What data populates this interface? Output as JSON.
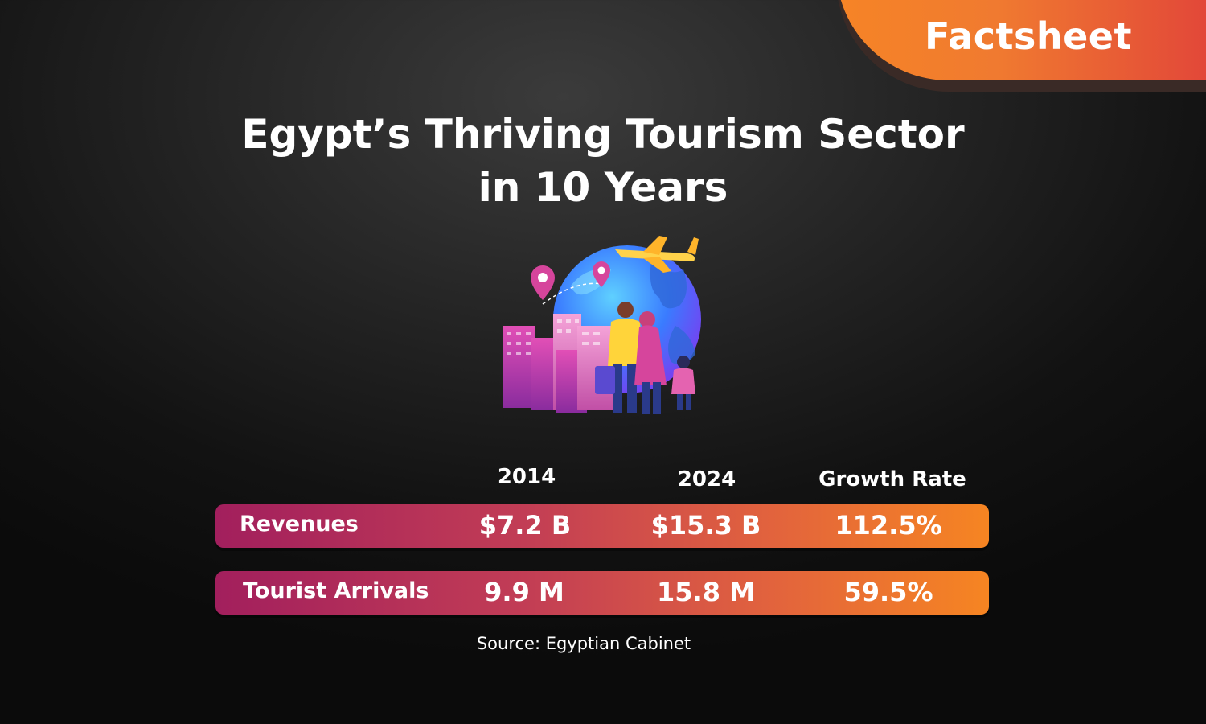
{
  "badge": {
    "label": "Factsheet"
  },
  "title": {
    "line1": "Egypt’s Thriving Tourism Sector",
    "line2": "in 10 Years"
  },
  "illustration": {
    "icons": [
      "globe-icon",
      "airplane-icon",
      "location-pin-icon",
      "buildings-icon",
      "tourist-family-icon"
    ]
  },
  "table": {
    "headers": [
      "2014",
      "2024",
      "Growth Rate"
    ],
    "rows": [
      {
        "label": "Revenues",
        "values": [
          "$7.2 B",
          "$15.3 B",
          "112.5%"
        ]
      },
      {
        "label": "Tourist Arrivals",
        "values": [
          "9.9 M",
          "15.8 M",
          "59.5%"
        ]
      }
    ]
  },
  "source": "Source: Egyptian Cabinet",
  "colors": {
    "accent_orange": "#f68426",
    "accent_magenta": "#a21f5d",
    "background": "#1a1a1a"
  }
}
